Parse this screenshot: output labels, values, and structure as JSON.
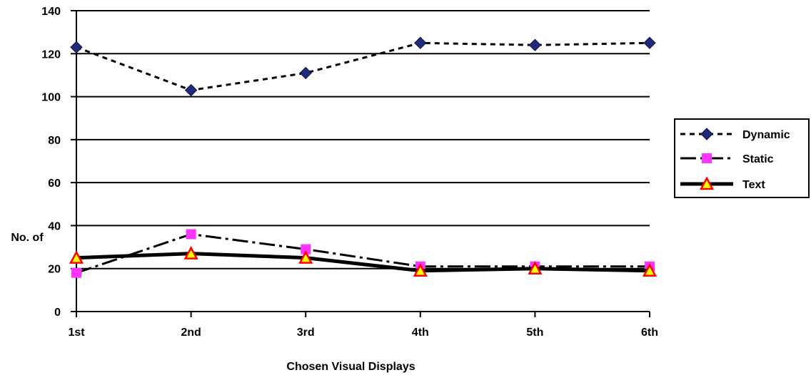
{
  "chart_data": {
    "type": "line",
    "categories": [
      "1st",
      "2nd",
      "3rd",
      "4th",
      "5th",
      "6th"
    ],
    "xlabel": "Chosen Visual Displays",
    "ylabel": "No. of",
    "ylim": [
      0,
      140
    ],
    "yticks": [
      0,
      20,
      40,
      60,
      80,
      100,
      120,
      140
    ],
    "grid": true,
    "legend": "right",
    "series": [
      {
        "name": "Dynamic",
        "values": [
          123,
          103,
          111,
          125,
          124,
          125
        ],
        "color": "#1f2a7a",
        "marker": "diamond",
        "line": "dotted"
      },
      {
        "name": "Static",
        "values": [
          18,
          36,
          29,
          21,
          21,
          21
        ],
        "color": "#ff33ff",
        "marker": "square",
        "line": "dash-dot"
      },
      {
        "name": "Text",
        "values": [
          25,
          27,
          25,
          19,
          20,
          19
        ],
        "color": "#ff0000",
        "marker": "triangle",
        "line": "solid"
      }
    ]
  }
}
